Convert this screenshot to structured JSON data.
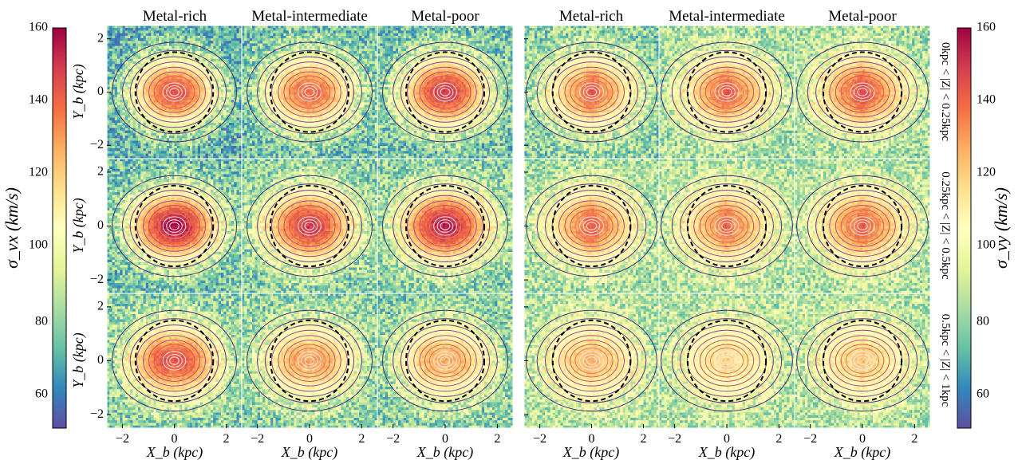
{
  "chart_data": {
    "type": "heatmap",
    "colormap": "Spectral_r",
    "colormap_stops": [
      "#5e4fa2",
      "#3288bd",
      "#66c2a5",
      "#abdda4",
      "#e6f598",
      "#ffffbf",
      "#fee08b",
      "#fdae61",
      "#f46d43",
      "#d53e4f",
      "#9e0142"
    ],
    "column_titles": [
      "Metal-rich",
      "Metal-intermediate",
      "Metal-poor",
      "Metal-rich",
      "Metal-intermediate",
      "Metal-poor"
    ],
    "row_labels": [
      "0kpc < |Z| < 0.25kpc",
      "0.25kpc < |Z| < 0.5kpc",
      "0.5kpc < |Z| < 1kpc"
    ],
    "xlabel": "X_b (kpc)",
    "ylabel": "Y_b (kpc)",
    "x_ticks": [
      "−2",
      "0",
      "2"
    ],
    "y_ticks": [
      "2",
      "0",
      "−2"
    ],
    "xlim": [
      -2.6,
      2.6
    ],
    "ylim": [
      -2.5,
      2.5
    ],
    "left_colorbar": {
      "label": "σ_vx (km/s)",
      "range": [
        50,
        160
      ],
      "ticks": [
        "60",
        "80",
        "100",
        "120",
        "140",
        "160"
      ]
    },
    "right_colorbar": {
      "label": "σ_vy (km/s)",
      "range": [
        50,
        160
      ],
      "ticks": [
        "60",
        "80",
        "100",
        "120",
        "140",
        "160"
      ]
    },
    "dashed_circle_radius_kpc": 1.5,
    "panels": [
      {
        "block": "sigma_vx",
        "row": 0,
        "col": 0,
        "center_dispersion": 145,
        "outer_dispersion": 75
      },
      {
        "block": "sigma_vx",
        "row": 0,
        "col": 1,
        "center_dispersion": 140,
        "outer_dispersion": 80
      },
      {
        "block": "sigma_vx",
        "row": 0,
        "col": 2,
        "center_dispersion": 150,
        "outer_dispersion": 80
      },
      {
        "block": "sigma_vx",
        "row": 1,
        "col": 0,
        "center_dispersion": 158,
        "outer_dispersion": 80
      },
      {
        "block": "sigma_vx",
        "row": 1,
        "col": 1,
        "center_dispersion": 150,
        "outer_dispersion": 85
      },
      {
        "block": "sigma_vx",
        "row": 1,
        "col": 2,
        "center_dispersion": 155,
        "outer_dispersion": 85
      },
      {
        "block": "sigma_vx",
        "row": 2,
        "col": 0,
        "center_dispersion": 150,
        "outer_dispersion": 85
      },
      {
        "block": "sigma_vx",
        "row": 2,
        "col": 1,
        "center_dispersion": 135,
        "outer_dispersion": 85
      },
      {
        "block": "sigma_vx",
        "row": 2,
        "col": 2,
        "center_dispersion": 132,
        "outer_dispersion": 85
      },
      {
        "block": "sigma_vy",
        "row": 0,
        "col": 0,
        "center_dispersion": 135,
        "outer_dispersion": 85
      },
      {
        "block": "sigma_vy",
        "row": 0,
        "col": 1,
        "center_dispersion": 135,
        "outer_dispersion": 90
      },
      {
        "block": "sigma_vy",
        "row": 0,
        "col": 2,
        "center_dispersion": 140,
        "outer_dispersion": 90
      },
      {
        "block": "sigma_vy",
        "row": 1,
        "col": 0,
        "center_dispersion": 135,
        "outer_dispersion": 90
      },
      {
        "block": "sigma_vy",
        "row": 1,
        "col": 1,
        "center_dispersion": 132,
        "outer_dispersion": 92
      },
      {
        "block": "sigma_vy",
        "row": 1,
        "col": 2,
        "center_dispersion": 135,
        "outer_dispersion": 92
      },
      {
        "block": "sigma_vy",
        "row": 2,
        "col": 0,
        "center_dispersion": 125,
        "outer_dispersion": 92
      },
      {
        "block": "sigma_vy",
        "row": 2,
        "col": 1,
        "center_dispersion": 118,
        "outer_dispersion": 92
      },
      {
        "block": "sigma_vy",
        "row": 2,
        "col": 2,
        "center_dispersion": 122,
        "outer_dispersion": 92
      }
    ]
  }
}
